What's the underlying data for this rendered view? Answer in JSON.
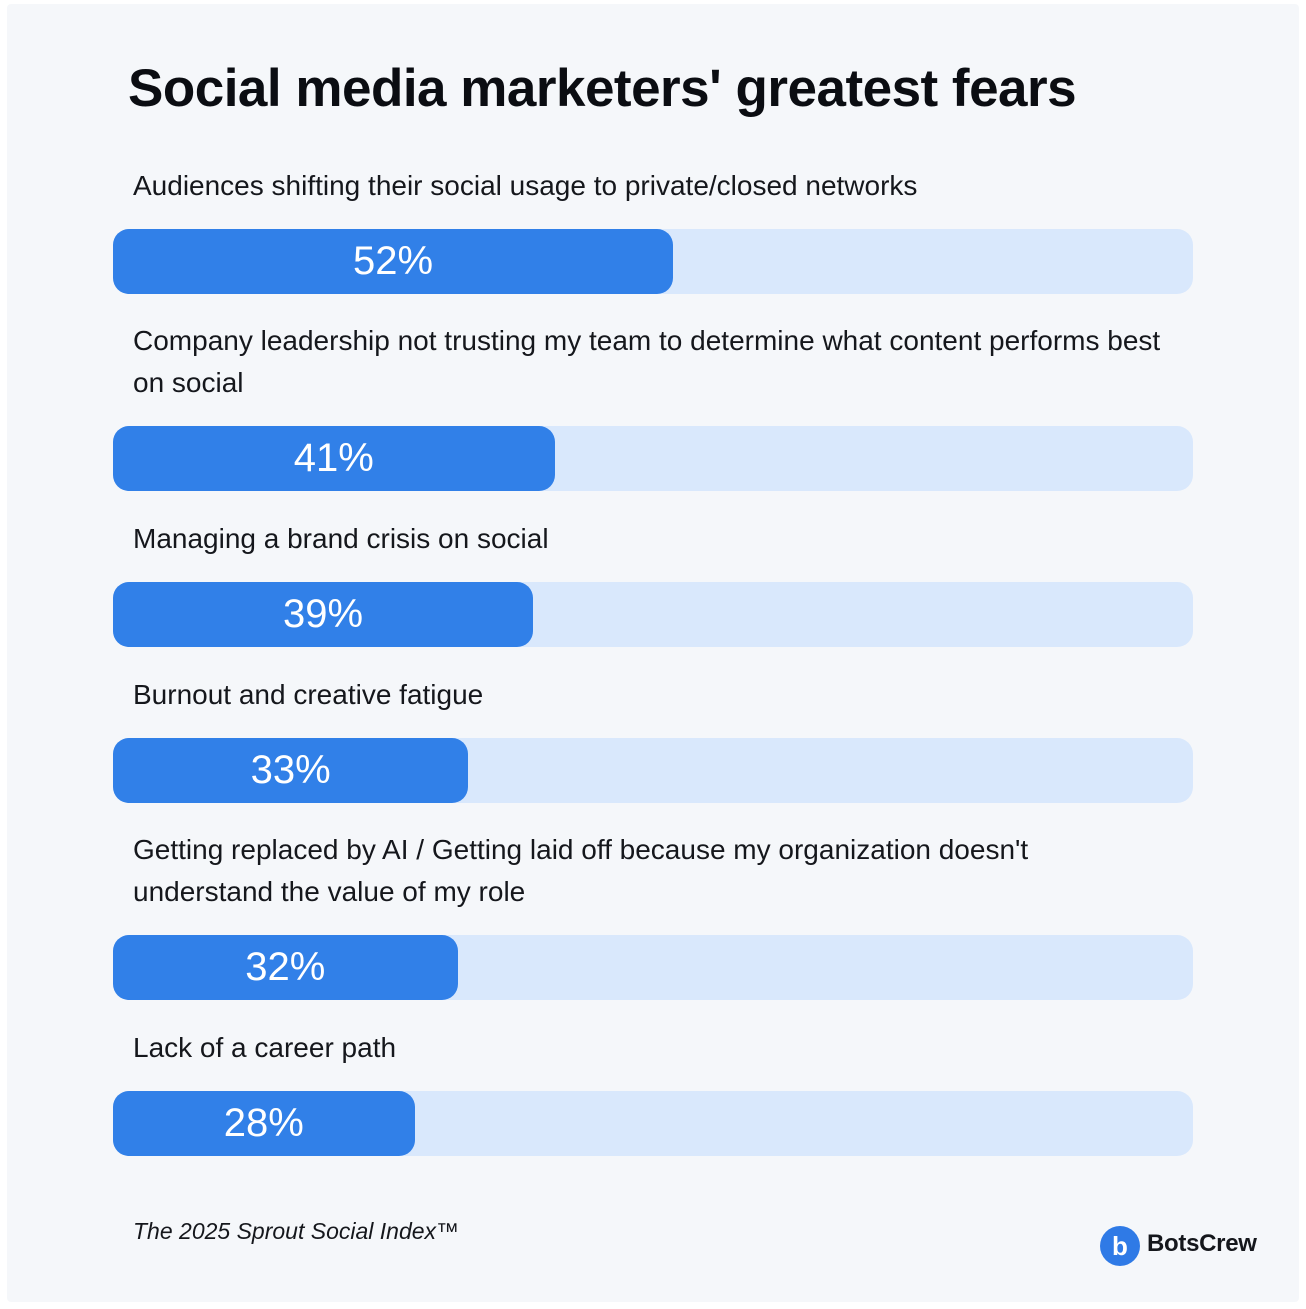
{
  "chart_data": {
    "type": "bar",
    "orientation": "horizontal",
    "title": "Social media marketers' greatest fears",
    "categories": [
      "Audiences shifting their social usage to private/closed networks",
      "Company leadership not trusting my team to determine what content performs best on social",
      "Managing a brand crisis on social",
      "Burnout and creative fatigue",
      "Getting replaced by AI / Getting laid off because my organization doesn't understand the value of my role",
      "Lack of a career path"
    ],
    "values": [
      52,
      41,
      39,
      33,
      32,
      28
    ],
    "value_labels": [
      "52%",
      "41%",
      "39%",
      "33%",
      "32%",
      "28%"
    ],
    "xlim": [
      0,
      100
    ],
    "grid": false,
    "legend": "none",
    "colors": {
      "bar": "#3180e8",
      "track": "#d9e8fc"
    }
  },
  "source": "The 2025 Sprout Social Index™",
  "brand": {
    "name": "BotsCrew",
    "icon": "b-logo-icon",
    "icon_letter": "b",
    "color": "#2f7ae6"
  }
}
